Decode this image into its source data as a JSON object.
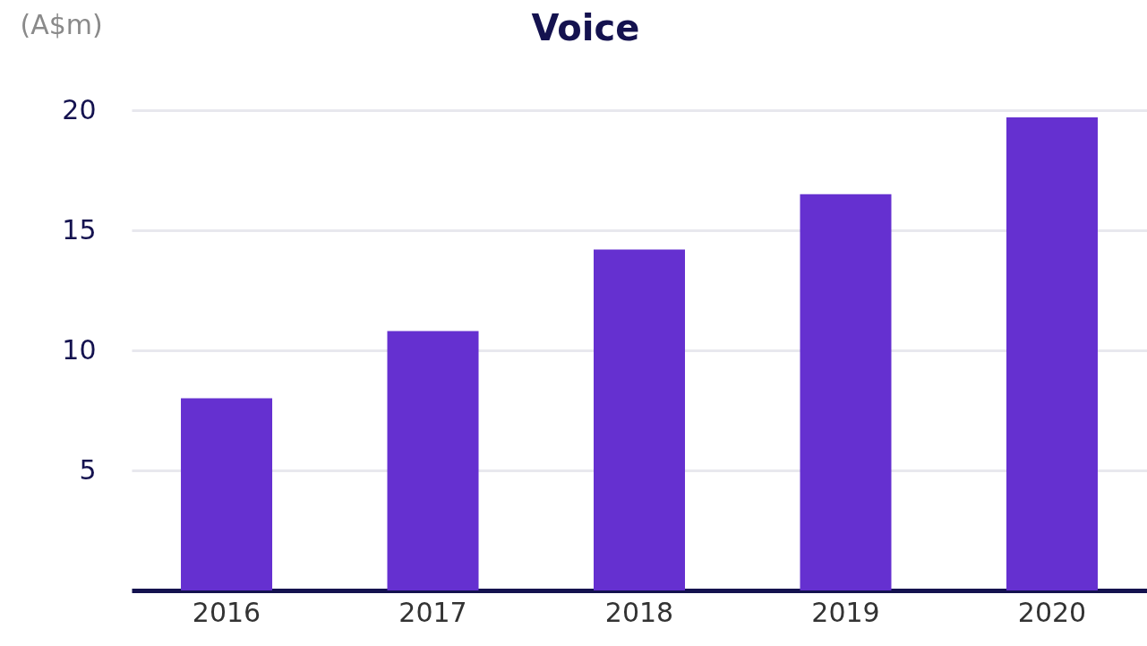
{
  "chart_data": {
    "type": "bar",
    "title": "Voice",
    "ylabel": "(A$m)",
    "categories": [
      "2016",
      "2017",
      "2018",
      "2019",
      "2020"
    ],
    "values": [
      8.0,
      10.8,
      14.2,
      16.5,
      19.7
    ],
    "color": "#6530d0",
    "ylim": [
      0,
      20
    ],
    "yticks": [
      5,
      10,
      15,
      20
    ],
    "grid": "y"
  }
}
